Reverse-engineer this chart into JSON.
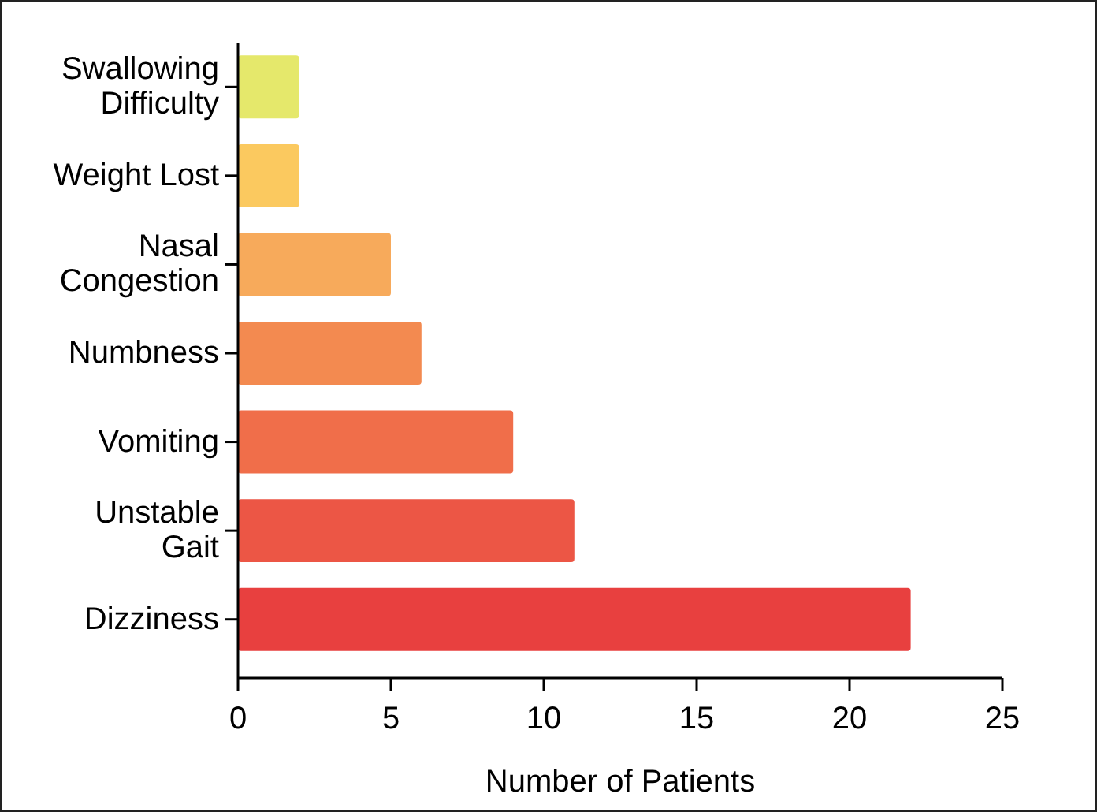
{
  "chart_data": {
    "type": "bar",
    "orientation": "horizontal",
    "xlabel": "Number of Patients",
    "categories": [
      "Swallowing\nDifficulty",
      "Weight Lost",
      "Nasal\nCongestion",
      "Numbness",
      "Vomiting",
      "Unstable\nGait",
      "Dizziness"
    ],
    "values": [
      2,
      2,
      5,
      6,
      9,
      11,
      22
    ],
    "colors": [
      "#e5e86b",
      "#fbc95f",
      "#f7aa5b",
      "#f38a50",
      "#f06e4a",
      "#ec5645",
      "#e8403f"
    ],
    "xlim": [
      0,
      25
    ],
    "xticks": [
      0,
      5,
      10,
      15,
      20,
      25
    ],
    "grid": false
  }
}
